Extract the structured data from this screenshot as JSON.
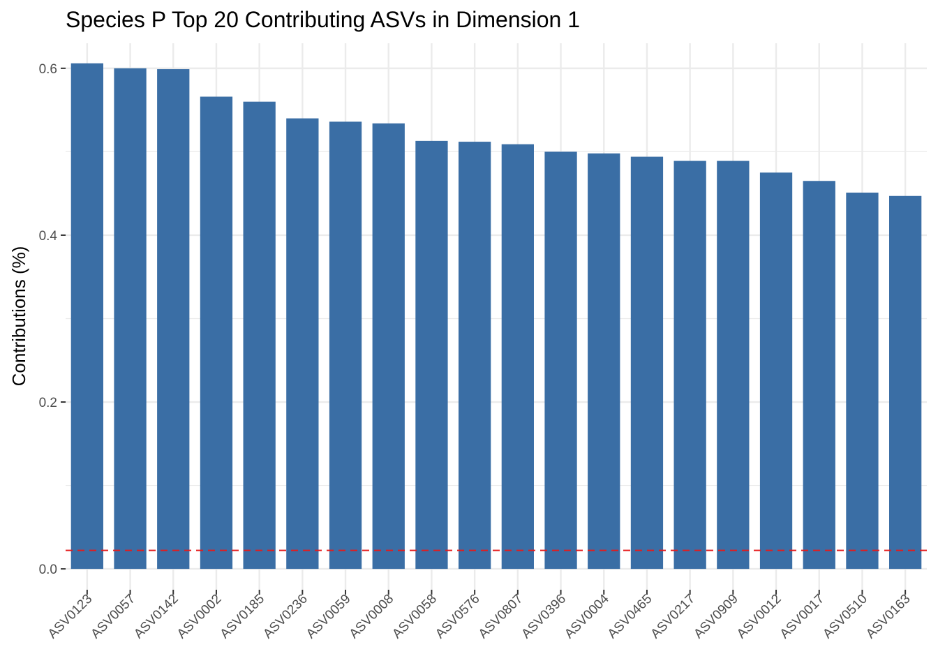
{
  "chart_data": {
    "type": "bar",
    "title": "Species P Top 20 Contributing ASVs in Dimension 1",
    "xlabel": "",
    "ylabel": "Contributions (%)",
    "categories": [
      "ASV0123",
      "ASV0057",
      "ASV0142",
      "ASV0002",
      "ASV0185",
      "ASV0236",
      "ASV0059",
      "ASV0008",
      "ASV0058",
      "ASV0576",
      "ASV0807",
      "ASV0396",
      "ASV0004",
      "ASV0465",
      "ASV0217",
      "ASV0909",
      "ASV0012",
      "ASV0017",
      "ASV0510",
      "ASV0163"
    ],
    "values": [
      0.606,
      0.6,
      0.599,
      0.566,
      0.56,
      0.54,
      0.536,
      0.534,
      0.513,
      0.512,
      0.509,
      0.5,
      0.498,
      0.494,
      0.489,
      0.489,
      0.475,
      0.465,
      0.451,
      0.447
    ],
    "ylim": [
      -0.025,
      0.63
    ],
    "yticks": [
      0.0,
      0.2,
      0.4,
      0.6
    ],
    "ytick_labels": [
      "0.0",
      "0.2",
      "0.4",
      "0.6"
    ],
    "reference_line": 0.0222,
    "grid": true,
    "legend": "none",
    "colors": {
      "bar": "#3a6ea5",
      "reference_line": "#e41a1c",
      "grid": "#ebebeb"
    }
  }
}
